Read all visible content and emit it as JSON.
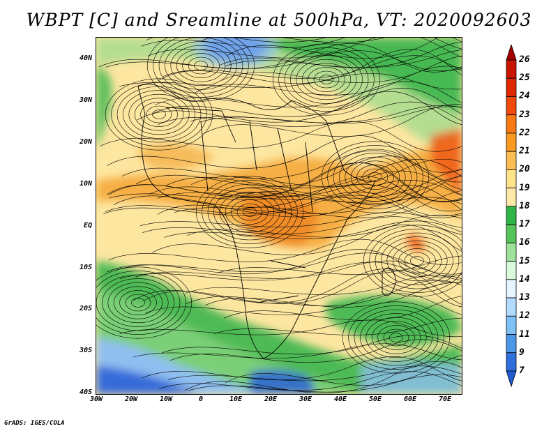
{
  "title": "WBPT [C] and Sreamline at 500hPa, VT: 2020092603",
  "credit": "GrADS: IGES/COLA",
  "lat_labels": [
    "40N",
    "30N",
    "20N",
    "10N",
    "EQ",
    "10S",
    "20S",
    "30S",
    "40S"
  ],
  "lon_labels": [
    "30W",
    "20W",
    "10W",
    "0",
    "10E",
    "20E",
    "30E",
    "40E",
    "50E",
    "60E",
    "70E"
  ],
  "colorbar": {
    "levels": [
      "26",
      "25",
      "24",
      "23",
      "22",
      "21",
      "20",
      "19",
      "18",
      "17",
      "16",
      "15",
      "14",
      "13",
      "12",
      "11",
      "9",
      "7"
    ],
    "colors": [
      "#a50000",
      "#c81400",
      "#e02800",
      "#f24a0a",
      "#f77a12",
      "#fa9a22",
      "#fdbf54",
      "#fde48a",
      "#ffe9a8",
      "#2fb449",
      "#55c45a",
      "#9ee29a",
      "#dafadc",
      "#e6f5ff",
      "#b2dcff",
      "#7fc0f5",
      "#4a97e8",
      "#2f6fdc",
      "#1e5cd3"
    ]
  },
  "palette": {
    "cold": "#2a62d6",
    "cool": "#8fbff0",
    "green": "#3cb64c",
    "light_green": "#8fd888",
    "yellow": "#fde6a0",
    "orange": "#f5a93c",
    "red": "#f06018"
  }
}
